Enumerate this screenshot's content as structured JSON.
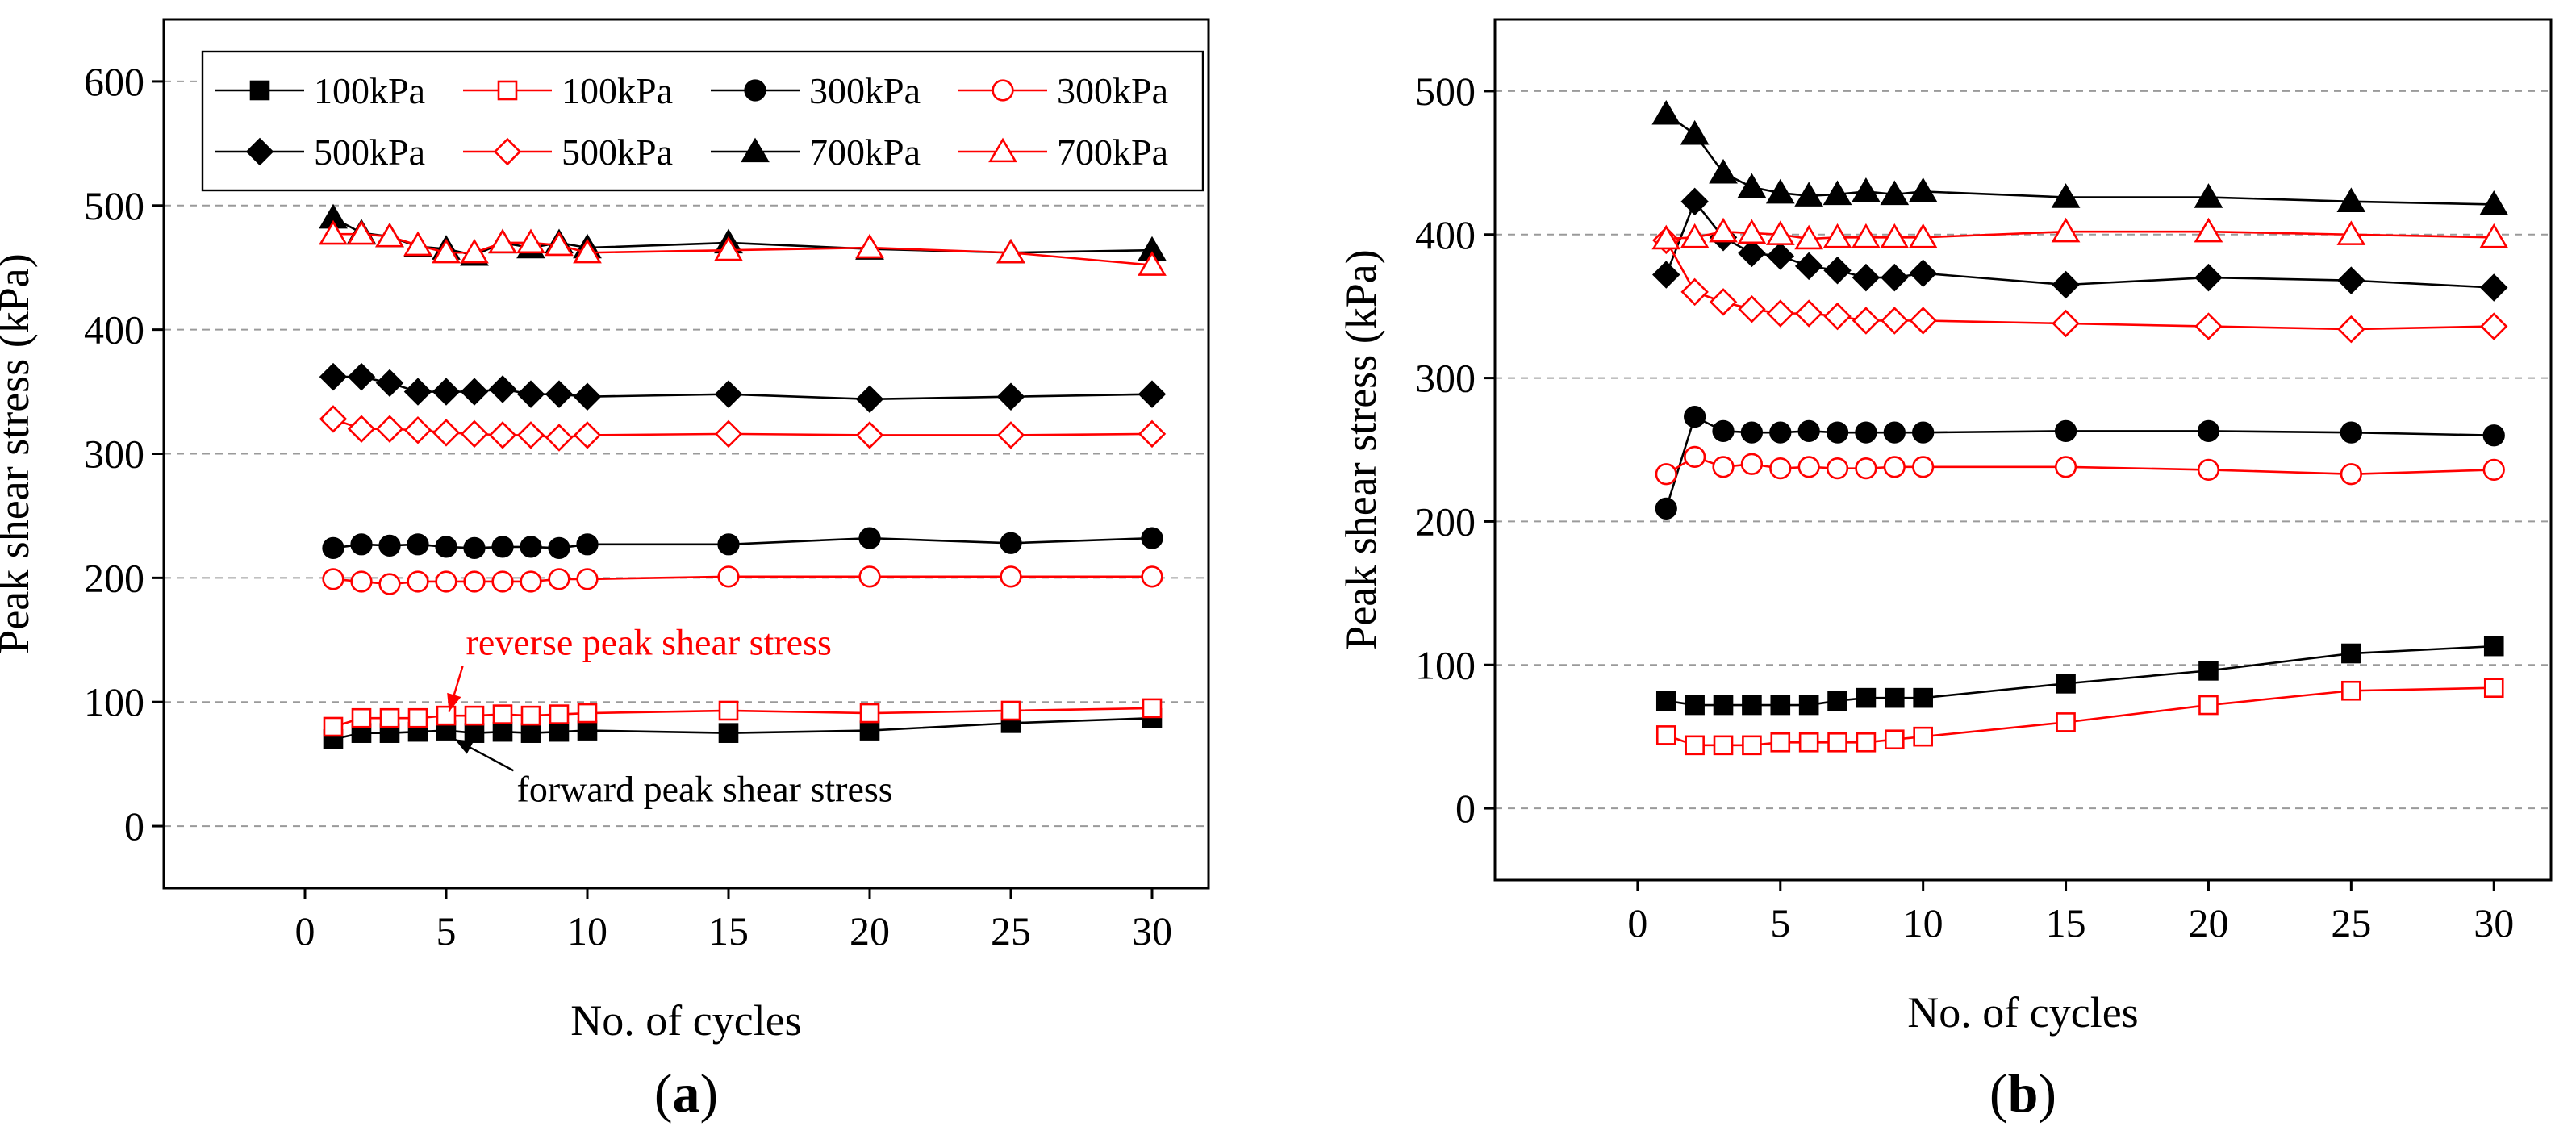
{
  "chart_data": [
    {
      "id": "a",
      "type": "line",
      "caption": "a",
      "xlabel": "No. of cycles",
      "ylabel": "Peak shear stress (kPa)",
      "xlim": [
        -5,
        32
      ],
      "ylim": [
        -50,
        650
      ],
      "xticks": [
        0,
        5,
        10,
        15,
        20,
        25,
        30
      ],
      "yticks": [
        0,
        100,
        200,
        300,
        400,
        500,
        600
      ],
      "grid": "horizontal-dashed",
      "legend_position": "top-left",
      "legend": [
        {
          "label": "100kPa",
          "marker": "square",
          "filled": true,
          "color": "#000000"
        },
        {
          "label": "100kPa",
          "marker": "square",
          "filled": false,
          "color": "#ff0000"
        },
        {
          "label": "300kPa",
          "marker": "circle",
          "filled": true,
          "color": "#000000"
        },
        {
          "label": "300kPa",
          "marker": "circle",
          "filled": false,
          "color": "#ff0000"
        },
        {
          "label": "500kPa",
          "marker": "diamond",
          "filled": true,
          "color": "#000000"
        },
        {
          "label": "500kPa",
          "marker": "diamond",
          "filled": false,
          "color": "#ff0000"
        },
        {
          "label": "700kPa",
          "marker": "triangle",
          "filled": true,
          "color": "#000000"
        },
        {
          "label": "700kPa",
          "marker": "triangle",
          "filled": false,
          "color": "#ff0000"
        }
      ],
      "x": [
        1,
        2,
        3,
        4,
        5,
        6,
        7,
        8,
        9,
        10,
        15,
        20,
        25,
        30
      ],
      "series": [
        {
          "name": "100kPa forward",
          "marker": "square",
          "filled": true,
          "color": "#000000",
          "values": [
            70,
            75,
            75,
            76,
            77,
            75,
            76,
            75,
            76,
            77,
            75,
            77,
            83,
            87
          ]
        },
        {
          "name": "100kPa reverse",
          "marker": "square",
          "filled": false,
          "color": "#ff0000",
          "values": [
            80,
            87,
            87,
            87,
            89,
            89,
            90,
            89,
            90,
            91,
            93,
            91,
            93,
            95
          ]
        },
        {
          "name": "300kPa forward",
          "marker": "circle",
          "filled": true,
          "color": "#000000",
          "values": [
            224,
            227,
            226,
            227,
            225,
            224,
            225,
            225,
            224,
            227,
            227,
            232,
            228,
            232
          ]
        },
        {
          "name": "300kPa reverse",
          "marker": "circle",
          "filled": false,
          "color": "#ff0000",
          "values": [
            199,
            197,
            195,
            197,
            197,
            197,
            197,
            197,
            199,
            199,
            201,
            201,
            201,
            201
          ]
        },
        {
          "name": "500kPa forward",
          "marker": "diamond",
          "filled": true,
          "color": "#000000",
          "values": [
            362,
            362,
            357,
            350,
            350,
            350,
            352,
            348,
            348,
            346,
            348,
            344,
            346,
            348
          ]
        },
        {
          "name": "500kPa reverse",
          "marker": "diamond",
          "filled": false,
          "color": "#ff0000",
          "values": [
            328,
            320,
            320,
            319,
            317,
            316,
            315,
            315,
            313,
            315,
            316,
            315,
            315,
            316
          ]
        },
        {
          "name": "700kPa forward",
          "marker": "triangle",
          "filled": true,
          "color": "#000000",
          "values": [
            490,
            478,
            475,
            467,
            465,
            460,
            470,
            466,
            470,
            466,
            470,
            465,
            462,
            464
          ]
        },
        {
          "name": "700kPa reverse",
          "marker": "triangle",
          "filled": false,
          "color": "#ff0000",
          "values": [
            477,
            477,
            475,
            468,
            462,
            462,
            470,
            470,
            468,
            462,
            464,
            466,
            462,
            452
          ]
        }
      ],
      "annotations": [
        {
          "text": "reverse peak shear stress",
          "color": "#ff0000",
          "x_text": 5.7,
          "y_text": 138,
          "arrow_x": 5.1,
          "arrow_y": 92
        },
        {
          "text": "forward peak shear stress",
          "color": "#000000",
          "x_text": 7.5,
          "y_text": 20,
          "arrow_x": 5.3,
          "arrow_y": 70
        }
      ]
    },
    {
      "id": "b",
      "type": "line",
      "caption": "b",
      "xlabel": "No. of cycles",
      "ylabel": "Peak shear stress (kPa)",
      "xlim": [
        -5,
        32
      ],
      "ylim": [
        -50,
        550
      ],
      "xticks": [
        0,
        5,
        10,
        15,
        20,
        25,
        30
      ],
      "yticks": [
        0,
        100,
        200,
        300,
        400,
        500
      ],
      "grid": "horizontal-dashed",
      "x": [
        1,
        2,
        3,
        4,
        5,
        6,
        7,
        8,
        9,
        10,
        15,
        20,
        25,
        30
      ],
      "series": [
        {
          "name": "100kPa forward",
          "marker": "square",
          "filled": true,
          "color": "#000000",
          "values": [
            75,
            72,
            72,
            72,
            72,
            72,
            75,
            77,
            77,
            77,
            87,
            96,
            108,
            113
          ]
        },
        {
          "name": "100kPa reverse",
          "marker": "square",
          "filled": false,
          "color": "#ff0000",
          "values": [
            51,
            44,
            44,
            44,
            46,
            46,
            46,
            46,
            48,
            50,
            60,
            72,
            82,
            84
          ]
        },
        {
          "name": "300kPa forward",
          "marker": "circle",
          "filled": true,
          "color": "#000000",
          "values": [
            209,
            273,
            263,
            262,
            262,
            263,
            262,
            262,
            262,
            262,
            263,
            263,
            262,
            260
          ]
        },
        {
          "name": "300kPa reverse",
          "marker": "circle",
          "filled": false,
          "color": "#ff0000",
          "values": [
            233,
            245,
            238,
            240,
            237,
            238,
            237,
            237,
            238,
            238,
            238,
            236,
            233,
            236
          ]
        },
        {
          "name": "500kPa forward",
          "marker": "diamond",
          "filled": true,
          "color": "#000000",
          "values": [
            372,
            423,
            398,
            387,
            385,
            378,
            375,
            370,
            370,
            373,
            365,
            370,
            368,
            363
          ]
        },
        {
          "name": "500kPa reverse",
          "marker": "diamond",
          "filled": false,
          "color": "#ff0000",
          "values": [
            396,
            360,
            353,
            348,
            345,
            345,
            343,
            340,
            340,
            340,
            338,
            336,
            334,
            336
          ]
        },
        {
          "name": "700kPa forward",
          "marker": "triangle",
          "filled": true,
          "color": "#000000",
          "values": [
            484,
            470,
            443,
            433,
            429,
            427,
            428,
            430,
            428,
            430,
            426,
            426,
            423,
            421
          ]
        },
        {
          "name": "700kPa reverse",
          "marker": "triangle",
          "filled": false,
          "color": "#ff0000",
          "values": [
            397,
            398,
            402,
            401,
            400,
            397,
            398,
            398,
            398,
            398,
            402,
            402,
            400,
            398
          ]
        }
      ]
    }
  ]
}
